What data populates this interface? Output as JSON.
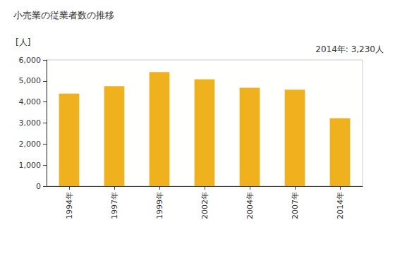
{
  "chart_data": {
    "type": "bar",
    "title": "小売業の従業者数の推移",
    "ylabel": "[人]",
    "annotation": "2014年: 3,230人",
    "categories": [
      "1994年",
      "1997年",
      "1999年",
      "2002年",
      "2004年",
      "2007年",
      "2014年"
    ],
    "values": [
      4400,
      4750,
      5420,
      5080,
      4680,
      4580,
      3230
    ],
    "color": "#f0b11e",
    "ylim": [
      0,
      6000
    ],
    "yticks": [
      0,
      {
        "value": 1000,
        "label": "1,000"
      },
      {
        "value": 2000,
        "label": "2,000"
      },
      {
        "value": 3000,
        "label": "3,000"
      },
      {
        "value": 4000,
        "label": "4,000"
      },
      {
        "value": 5000,
        "label": "5,000"
      },
      {
        "value": 6000,
        "label": "6,000"
      }
    ],
    "grid": false
  }
}
